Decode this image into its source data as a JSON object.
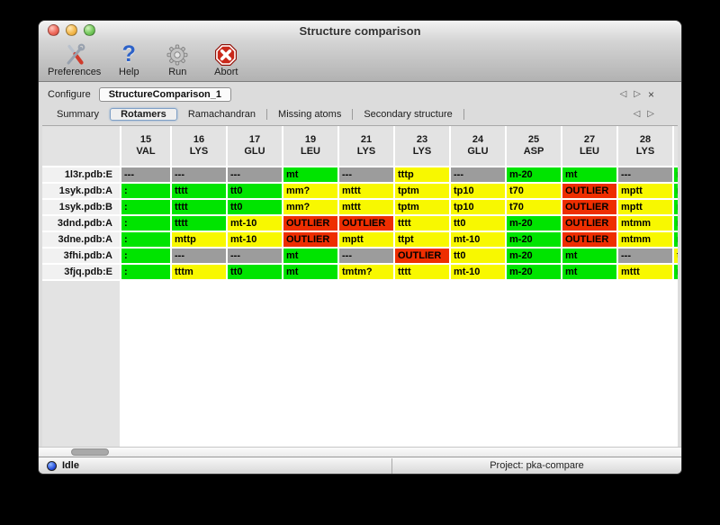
{
  "window": {
    "title": "Structure comparison"
  },
  "toolbar": {
    "items": [
      {
        "label": "Preferences",
        "icon": "tools-icon"
      },
      {
        "label": "Help",
        "icon": "question-icon"
      },
      {
        "label": "Run",
        "icon": "gear-icon"
      },
      {
        "label": "Abort",
        "icon": "stop-icon"
      }
    ]
  },
  "configure": {
    "label": "Configure",
    "selected_config": "StructureComparison_1",
    "prev_icon": "◁",
    "next_icon": "▷",
    "close_icon": "×"
  },
  "tabs": {
    "selected": "Rotamers",
    "items": [
      {
        "label": "Summary"
      },
      {
        "label": "Rotamers"
      },
      {
        "label": "Ramachandran"
      },
      {
        "label": "Missing atoms"
      },
      {
        "label": "Secondary structure"
      }
    ],
    "prev_icon": "◁",
    "next_icon": "▷"
  },
  "table": {
    "columns": [
      {
        "num": "15",
        "res": "VAL"
      },
      {
        "num": "16",
        "res": "LYS"
      },
      {
        "num": "17",
        "res": "GLU"
      },
      {
        "num": "19",
        "res": "LEU"
      },
      {
        "num": "21",
        "res": "LYS"
      },
      {
        "num": "23",
        "res": "LYS"
      },
      {
        "num": "24",
        "res": "GLU"
      },
      {
        "num": "25",
        "res": "ASP"
      },
      {
        "num": "27",
        "res": "LEU"
      },
      {
        "num": "28",
        "res": "LYS"
      },
      {
        "num": "",
        "res": ""
      }
    ],
    "rows": [
      {
        "name": "1l3r.pdb:E",
        "cells": [
          {
            "t": "---",
            "c": "gray"
          },
          {
            "t": "---",
            "c": "gray"
          },
          {
            "t": "---",
            "c": "gray"
          },
          {
            "t": "mt",
            "c": "green"
          },
          {
            "t": "---",
            "c": "gray"
          },
          {
            "t": "tttp",
            "c": "yellow"
          },
          {
            "t": "---",
            "c": "gray"
          },
          {
            "t": "m-20",
            "c": "green"
          },
          {
            "t": "mt",
            "c": "green"
          },
          {
            "t": "---",
            "c": "gray"
          },
          {
            "t": "m",
            "c": "green"
          }
        ]
      },
      {
        "name": "1syk.pdb:A",
        "cells": [
          {
            "t": ":",
            "c": "green"
          },
          {
            "t": "tttt",
            "c": "green"
          },
          {
            "t": "tt0",
            "c": "green"
          },
          {
            "t": "mm?",
            "c": "yellow"
          },
          {
            "t": "mttt",
            "c": "yellow"
          },
          {
            "t": "tptm",
            "c": "yellow"
          },
          {
            "t": "tp10",
            "c": "yellow"
          },
          {
            "t": "t70",
            "c": "yellow"
          },
          {
            "t": "OUTLIER",
            "c": "red"
          },
          {
            "t": "mptt",
            "c": "yellow"
          },
          {
            "t": "m",
            "c": "green"
          }
        ]
      },
      {
        "name": "1syk.pdb:B",
        "cells": [
          {
            "t": ":",
            "c": "green"
          },
          {
            "t": "tttt",
            "c": "green"
          },
          {
            "t": "tt0",
            "c": "green"
          },
          {
            "t": "mm?",
            "c": "yellow"
          },
          {
            "t": "mttt",
            "c": "yellow"
          },
          {
            "t": "tptm",
            "c": "yellow"
          },
          {
            "t": "tp10",
            "c": "yellow"
          },
          {
            "t": "t70",
            "c": "yellow"
          },
          {
            "t": "OUTLIER",
            "c": "red"
          },
          {
            "t": "mptt",
            "c": "yellow"
          },
          {
            "t": "m",
            "c": "green"
          }
        ]
      },
      {
        "name": "3dnd.pdb:A",
        "cells": [
          {
            "t": ":",
            "c": "green"
          },
          {
            "t": "tttt",
            "c": "green"
          },
          {
            "t": "mt-10",
            "c": "yellow"
          },
          {
            "t": "OUTLIER",
            "c": "red"
          },
          {
            "t": "OUTLIER",
            "c": "red"
          },
          {
            "t": "tttt",
            "c": "yellow"
          },
          {
            "t": "tt0",
            "c": "yellow"
          },
          {
            "t": "m-20",
            "c": "green"
          },
          {
            "t": "OUTLIER",
            "c": "red"
          },
          {
            "t": "mtmm",
            "c": "yellow"
          },
          {
            "t": "m",
            "c": "green"
          }
        ]
      },
      {
        "name": "3dne.pdb:A",
        "cells": [
          {
            "t": ":",
            "c": "green"
          },
          {
            "t": "mttp",
            "c": "yellow"
          },
          {
            "t": "mt-10",
            "c": "yellow"
          },
          {
            "t": "OUTLIER",
            "c": "red"
          },
          {
            "t": "mptt",
            "c": "yellow"
          },
          {
            "t": "ttpt",
            "c": "yellow"
          },
          {
            "t": "mt-10",
            "c": "yellow"
          },
          {
            "t": "m-20",
            "c": "green"
          },
          {
            "t": "OUTLIER",
            "c": "red"
          },
          {
            "t": "mtmm",
            "c": "yellow"
          },
          {
            "t": "m",
            "c": "green"
          }
        ]
      },
      {
        "name": "3fhi.pdb:A",
        "cells": [
          {
            "t": ":",
            "c": "green"
          },
          {
            "t": "---",
            "c": "gray"
          },
          {
            "t": "---",
            "c": "gray"
          },
          {
            "t": "mt",
            "c": "green"
          },
          {
            "t": "---",
            "c": "gray"
          },
          {
            "t": "OUTLIER",
            "c": "red"
          },
          {
            "t": "tt0",
            "c": "yellow"
          },
          {
            "t": "m-20",
            "c": "green"
          },
          {
            "t": "mt",
            "c": "green"
          },
          {
            "t": "---",
            "c": "gray"
          },
          {
            "t": "t",
            "c": "yellow"
          }
        ]
      },
      {
        "name": "3fjq.pdb:E",
        "cells": [
          {
            "t": ":",
            "c": "green"
          },
          {
            "t": "tttm",
            "c": "yellow"
          },
          {
            "t": "tt0",
            "c": "green"
          },
          {
            "t": "mt",
            "c": "green"
          },
          {
            "t": "tmtm?",
            "c": "yellow"
          },
          {
            "t": "tttt",
            "c": "yellow"
          },
          {
            "t": "mt-10",
            "c": "yellow"
          },
          {
            "t": "m-20",
            "c": "green"
          },
          {
            "t": "mt",
            "c": "green"
          },
          {
            "t": "mttt",
            "c": "yellow"
          },
          {
            "t": "m",
            "c": "green"
          }
        ]
      }
    ]
  },
  "statusbar": {
    "status": "Idle",
    "project": "Project: pka-compare"
  },
  "colors": {
    "green": "#00e400",
    "yellow": "#f8f800",
    "red": "#ee2e00",
    "gray": "#9c9c9c"
  }
}
